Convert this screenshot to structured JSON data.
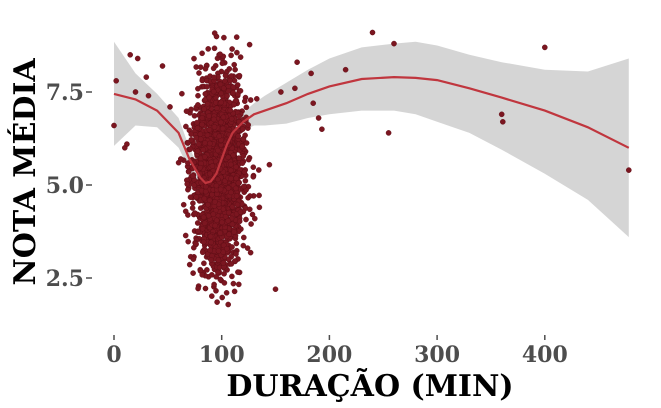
{
  "chart_data": {
    "type": "scatter",
    "title": "",
    "xlabel": "DURAÇÃO (MIN)",
    "ylabel": "NOTA MÉDIA",
    "xlim": [
      0,
      480
    ],
    "ylim": [
      1.4,
      9.3
    ],
    "x_ticks": [
      0,
      100,
      200,
      300,
      400
    ],
    "x_tick_labels": [
      "0",
      "100",
      "200",
      "300",
      "400"
    ],
    "y_ticks": [
      2.5,
      5.0,
      7.5
    ],
    "y_tick_labels": [
      "2.5",
      "5.0",
      "7.5"
    ],
    "grid": false,
    "legend": "none",
    "colors": {
      "points": "#7b1620",
      "smooth_line": "#c0363e",
      "confidence_band": "#d3d3d3",
      "tick_text": "#4d4d4d"
    },
    "dense_cluster": {
      "x_center": 97,
      "x_spread": 12,
      "y_center": 5.4,
      "y_spread": 1.2,
      "y_min": 1.5,
      "y_max": 9.3,
      "approx_count": 2500
    },
    "outliers": [
      {
        "x": 0,
        "y": 6.6
      },
      {
        "x": 2,
        "y": 7.8
      },
      {
        "x": 10,
        "y": 6.0
      },
      {
        "x": 12,
        "y": 6.1
      },
      {
        "x": 15,
        "y": 8.5
      },
      {
        "x": 20,
        "y": 7.5
      },
      {
        "x": 22,
        "y": 8.4
      },
      {
        "x": 30,
        "y": 7.9
      },
      {
        "x": 32,
        "y": 7.4
      },
      {
        "x": 45,
        "y": 8.2
      },
      {
        "x": 52,
        "y": 7.1
      },
      {
        "x": 60,
        "y": 5.6
      },
      {
        "x": 62,
        "y": 5.7
      },
      {
        "x": 150,
        "y": 2.2
      },
      {
        "x": 155,
        "y": 7.5
      },
      {
        "x": 168,
        "y": 7.6
      },
      {
        "x": 170,
        "y": 8.3
      },
      {
        "x": 183,
        "y": 8.0
      },
      {
        "x": 185,
        "y": 7.2
      },
      {
        "x": 190,
        "y": 6.8
      },
      {
        "x": 193,
        "y": 6.5
      },
      {
        "x": 215,
        "y": 8.1
      },
      {
        "x": 240,
        "y": 9.1
      },
      {
        "x": 255,
        "y": 6.4
      },
      {
        "x": 260,
        "y": 8.8
      },
      {
        "x": 360,
        "y": 6.9
      },
      {
        "x": 361,
        "y": 6.7
      },
      {
        "x": 400,
        "y": 8.7
      },
      {
        "x": 478,
        "y": 5.4
      }
    ],
    "smooth_line": {
      "x": [
        0,
        20,
        40,
        60,
        70,
        80,
        85,
        90,
        95,
        100,
        105,
        110,
        120,
        130,
        140,
        160,
        180,
        200,
        230,
        260,
        280,
        300,
        330,
        360,
        400,
        440,
        478
      ],
      "y": [
        7.45,
        7.3,
        7.0,
        6.4,
        5.7,
        5.2,
        5.05,
        5.1,
        5.3,
        5.7,
        6.1,
        6.4,
        6.7,
        6.9,
        7.0,
        7.2,
        7.45,
        7.65,
        7.85,
        7.9,
        7.88,
        7.82,
        7.6,
        7.35,
        7.0,
        6.55,
        6.0
      ]
    },
    "confidence_band": {
      "x": [
        0,
        20,
        40,
        60,
        70,
        80,
        85,
        90,
        95,
        100,
        105,
        110,
        120,
        130,
        140,
        160,
        180,
        200,
        230,
        260,
        280,
        300,
        330,
        360,
        400,
        440,
        478
      ],
      "upper": [
        8.85,
        8.0,
        7.45,
        6.8,
        6.0,
        5.4,
        5.2,
        5.2,
        5.45,
        5.85,
        6.3,
        6.6,
        6.95,
        7.2,
        7.4,
        7.75,
        8.1,
        8.4,
        8.7,
        8.8,
        8.85,
        8.75,
        8.5,
        8.3,
        8.1,
        8.05,
        8.4
      ],
      "lower": [
        6.05,
        6.6,
        6.55,
        6.0,
        5.4,
        5.0,
        4.9,
        4.95,
        5.15,
        5.5,
        5.9,
        6.2,
        6.45,
        6.6,
        6.6,
        6.65,
        6.8,
        6.9,
        7.0,
        7.0,
        6.9,
        6.7,
        6.4,
        5.95,
        5.3,
        4.6,
        3.6
      ]
    }
  }
}
